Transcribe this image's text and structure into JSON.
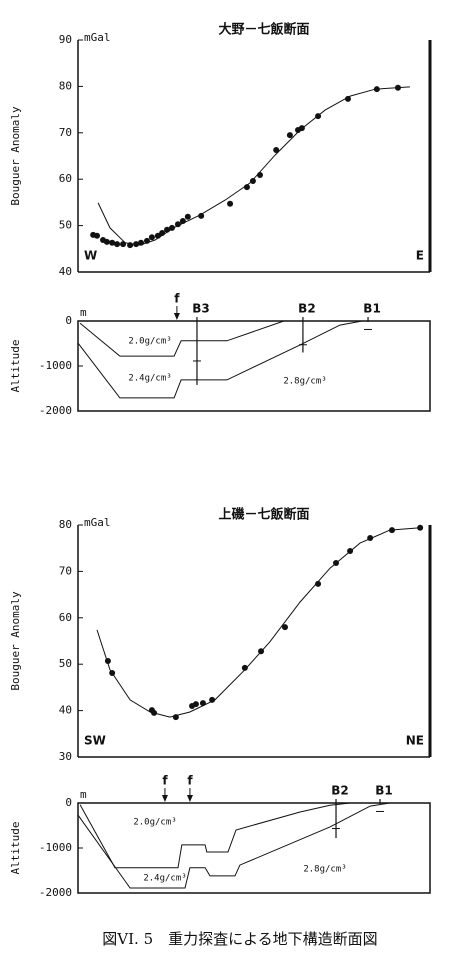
{
  "chart_data": [
    {
      "type": "scatter",
      "title": "大野－七飯断面",
      "unit": "mGal",
      "ylabel": "Bouguer Anomaly",
      "left_label": "W",
      "right_label": "E",
      "xlim": [
        0,
        100
      ],
      "ylim": [
        40,
        90
      ],
      "yticks": [
        40,
        50,
        60,
        70,
        80,
        90
      ],
      "color": "#111111",
      "points": {
        "x": [
          4.3,
          5.4,
          7.1,
          8.2,
          9.7,
          11.1,
          12.8,
          14.8,
          16.5,
          17.9,
          19.6,
          21.0,
          22.7,
          23.9,
          25.3,
          26.7,
          28.4,
          29.8,
          31.2,
          35.0,
          43.2,
          48.0,
          49.7,
          51.7,
          56.3,
          60.2,
          62.5,
          63.6,
          68.2,
          76.7,
          84.9,
          90.9
        ],
        "values": [
          48.0,
          47.8,
          46.9,
          46.5,
          46.3,
          46.0,
          46.0,
          45.8,
          46.0,
          46.3,
          46.7,
          47.5,
          47.8,
          48.4,
          49.1,
          49.5,
          50.3,
          51.0,
          51.9,
          52.1,
          54.7,
          58.3,
          59.6,
          60.9,
          66.3,
          69.5,
          70.6,
          71.0,
          73.6,
          77.3,
          79.4,
          79.7
        ]
      },
      "curve": {
        "x": [
          5.7,
          9.1,
          13.4,
          17.6,
          21.9,
          27.6,
          34.7,
          41.8,
          48.9,
          56.0,
          63.1,
          70.2,
          77.3,
          84.4,
          94.3
        ],
        "values": [
          54.9,
          49.5,
          46.3,
          45.8,
          46.9,
          49.7,
          52.3,
          55.5,
          59.2,
          65.2,
          70.6,
          74.9,
          77.9,
          79.4,
          79.9
        ]
      }
    },
    {
      "type": "section",
      "unit": "m",
      "ylabel": "Altitude",
      "xlim": [
        0,
        100
      ],
      "ylim": [
        -2000,
        0
      ],
      "yticks": [
        0,
        -1000,
        -2000
      ],
      "layers": [
        "2.0g/cm³",
        "2.4g/cm³",
        "2.8g/cm³"
      ],
      "boundaries": [
        {
          "x": [
            0.6,
            11.9,
            27.3,
            29.3,
            42.3,
            58.5
          ],
          "values": [
            -50,
            -780,
            -780,
            -440,
            -440,
            0
          ]
        },
        {
          "x": [
            0,
            11.9,
            27.3,
            29.3,
            42.3,
            63.1,
            74.4,
            80.7
          ],
          "values": [
            -490,
            -1710,
            -1710,
            -1310,
            -1310,
            -530,
            -90,
            0
          ]
        }
      ],
      "faults": [
        {
          "label": "f",
          "x": 28.1
        }
      ],
      "boreholes": [
        {
          "label": "B3",
          "x": 33.8,
          "depth": -1420
        },
        {
          "label": "B2",
          "x": 63.9,
          "depth": -700
        },
        {
          "label": "B1",
          "x": 82.4,
          "depth": -20
        }
      ]
    },
    {
      "type": "scatter",
      "title": "上磯－七飯断面",
      "unit": "mGal",
      "ylabel": "Bouguer Anomaly",
      "left_label": "SW",
      "right_label": "NE",
      "xlim": [
        0,
        100
      ],
      "ylim": [
        30,
        80
      ],
      "yticks": [
        30,
        40,
        50,
        60,
        70,
        80
      ],
      "color": "#111111",
      "points": {
        "x": [
          8.5,
          9.7,
          21.0,
          21.6,
          27.8,
          32.4,
          33.5,
          35.5,
          38.1,
          47.4,
          52.0,
          58.8,
          68.2,
          73.3,
          77.3,
          83.0,
          89.2,
          97.2
        ],
        "values": [
          50.7,
          48.1,
          40.1,
          39.5,
          38.6,
          41.0,
          41.4,
          41.6,
          42.3,
          49.2,
          52.8,
          58.0,
          67.3,
          71.8,
          74.4,
          77.2,
          78.9,
          79.4
        ]
      },
      "curve": {
        "x": [
          5.4,
          9.1,
          14.8,
          20.5,
          26.1,
          31.8,
          38.9,
          47.4,
          54.5,
          63.1,
          71.6,
          80.1,
          88.6,
          97.2
        ],
        "values": [
          57.4,
          48.8,
          42.3,
          39.7,
          38.6,
          39.7,
          42.3,
          48.8,
          54.8,
          63.4,
          70.7,
          76.1,
          78.9,
          79.4
        ]
      }
    },
    {
      "type": "section",
      "unit": "m",
      "ylabel": "Altitude",
      "xlim": [
        0,
        100
      ],
      "ylim": [
        -2000,
        0
      ],
      "yticks": [
        0,
        -1000,
        -2000
      ],
      "layers": [
        "2.0g/cm³",
        "2.4g/cm³",
        "2.8g/cm³"
      ],
      "boundaries": [
        {
          "x": [
            0.6,
            10.5,
            28.4,
            29.5,
            36.1,
            36.6,
            42.6,
            44.9,
            63.1,
            71.6,
            77.3
          ],
          "values": [
            -40,
            -1440,
            -1440,
            -930,
            -930,
            -1090,
            -1090,
            -600,
            -200,
            -50,
            0
          ]
        },
        {
          "x": [
            0,
            14.8,
            30.4,
            31.8,
            36.1,
            37.5,
            44.6,
            46.0,
            71.6,
            83.0,
            88.6
          ],
          "values": [
            -270,
            -1890,
            -1890,
            -1440,
            -1440,
            -1620,
            -1620,
            -1380,
            -530,
            -70,
            0
          ]
        }
      ],
      "faults": [
        {
          "label": "f",
          "x": 24.7
        },
        {
          "label": "f",
          "x": 31.8
        }
      ],
      "boreholes": [
        {
          "label": "B2",
          "x": 73.3,
          "depth": -780
        },
        {
          "label": "B1",
          "x": 85.8,
          "depth": -20
        }
      ]
    }
  ],
  "caption": "図VI. 5　重力探査による地下構造断面図"
}
